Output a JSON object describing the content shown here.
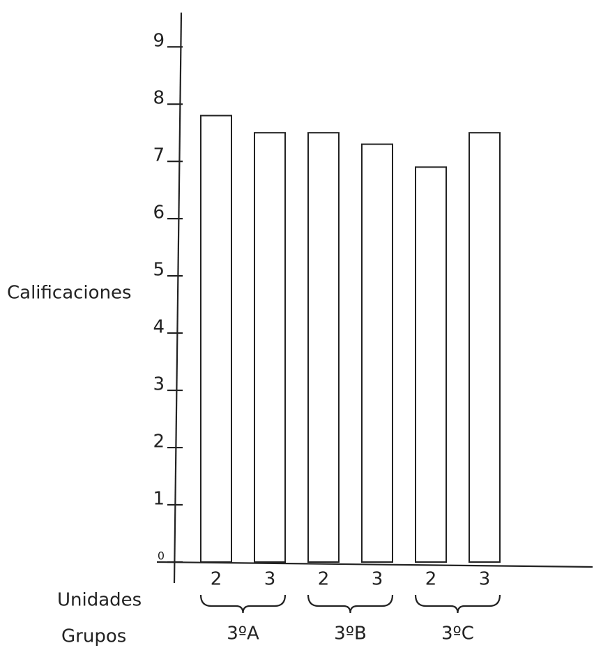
{
  "chart_data": {
    "type": "bar",
    "y_label": "Calificaciones",
    "x_label": "Unidades",
    "group_label": "Grupos",
    "categories": [
      "2",
      "3",
      "2",
      "3",
      "2",
      "3"
    ],
    "groups": [
      "3ºA",
      "3ºB",
      "3ºC"
    ],
    "values": [
      7.8,
      7.5,
      7.5,
      7.3,
      6.9,
      7.5
    ],
    "color": "#ffffff",
    "ylim": [
      0,
      9.6
    ],
    "yticks": [
      0,
      1,
      2,
      3,
      4,
      5,
      6,
      7,
      8,
      9
    ],
    "grid": false
  }
}
